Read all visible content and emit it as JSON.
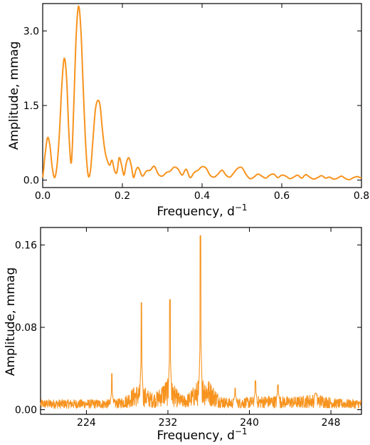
{
  "colors": {
    "series": "#f7931e"
  },
  "chart_data": [
    {
      "type": "line",
      "xlabel": "Frequency, d",
      "xlabel_superscript": "−1",
      "ylabel": "Amplitude, mmag",
      "xlim": [
        0,
        0.8
      ],
      "ylim": [
        -0.15,
        3.55
      ],
      "xticks": [
        0,
        0.2,
        0.4,
        0.6,
        0.8
      ],
      "xtick_labels": [
        "0.0",
        "0.2",
        "0.4",
        "0.6",
        "0.8"
      ],
      "yticks": [
        0,
        1.5,
        3.0
      ],
      "ytick_labels": [
        "0.0",
        "1.5",
        "3.0"
      ],
      "grid": false,
      "series": [
        {
          "x": [
            0.0,
            0.005,
            0.012,
            0.018,
            0.024,
            0.03,
            0.036,
            0.042,
            0.048,
            0.054,
            0.06,
            0.066,
            0.072,
            0.078,
            0.084,
            0.09,
            0.096,
            0.102,
            0.108,
            0.114,
            0.12,
            0.126,
            0.132,
            0.138,
            0.144,
            0.15,
            0.156,
            0.162,
            0.168,
            0.174,
            0.18,
            0.186,
            0.192,
            0.198,
            0.204,
            0.21,
            0.216,
            0.222,
            0.228,
            0.234,
            0.24,
            0.25,
            0.26,
            0.27,
            0.28,
            0.29,
            0.3,
            0.31,
            0.32,
            0.33,
            0.34,
            0.35,
            0.36,
            0.37,
            0.38,
            0.39,
            0.4,
            0.41,
            0.42,
            0.43,
            0.44,
            0.45,
            0.46,
            0.47,
            0.48,
            0.49,
            0.5,
            0.51,
            0.52,
            0.53,
            0.54,
            0.55,
            0.56,
            0.57,
            0.58,
            0.59,
            0.6,
            0.61,
            0.62,
            0.63,
            0.64,
            0.65,
            0.66,
            0.67,
            0.68,
            0.69,
            0.7,
            0.71,
            0.72,
            0.73,
            0.74,
            0.75,
            0.76,
            0.77,
            0.78,
            0.79,
            0.8
          ],
          "y": [
            0.05,
            0.45,
            0.85,
            0.7,
            0.25,
            0.05,
            0.3,
            0.95,
            1.9,
            2.45,
            2.05,
            0.9,
            0.35,
            1.5,
            2.9,
            3.5,
            3.0,
            1.8,
            0.7,
            0.1,
            0.2,
            0.8,
            1.4,
            1.6,
            1.5,
            1.0,
            0.6,
            0.4,
            0.3,
            0.4,
            0.2,
            0.15,
            0.45,
            0.3,
            0.1,
            0.35,
            0.45,
            0.3,
            0.05,
            0.2,
            0.25,
            0.08,
            0.18,
            0.2,
            0.28,
            0.12,
            0.08,
            0.15,
            0.18,
            0.26,
            0.22,
            0.1,
            0.22,
            0.05,
            0.15,
            0.2,
            0.27,
            0.24,
            0.1,
            0.06,
            0.12,
            0.2,
            0.1,
            0.06,
            0.15,
            0.24,
            0.25,
            0.12,
            0.03,
            0.06,
            0.12,
            0.08,
            0.04,
            0.1,
            0.12,
            0.05,
            0.1,
            0.08,
            0.03,
            0.06,
            0.1,
            0.04,
            0.11,
            0.06,
            0.02,
            0.05,
            0.09,
            0.04,
            0.06,
            0.02,
            0.04,
            0.08,
            0.03,
            0.01,
            0.05,
            0.07,
            0.04
          ]
        }
      ]
    },
    {
      "type": "line",
      "xlabel": "Frequency, d",
      "xlabel_superscript": "−1",
      "ylabel": "Amplitude, mmag",
      "xlim": [
        219.5,
        251.0
      ],
      "ylim": [
        -0.0045,
        0.177
      ],
      "xticks": [
        224,
        232,
        240,
        248
      ],
      "xtick_labels": [
        "224",
        "232",
        "240",
        "248"
      ],
      "yticks": [
        0.0,
        0.08,
        0.16
      ],
      "ytick_labels": [
        "0.00",
        "0.08",
        "0.16"
      ],
      "grid": false,
      "series": [
        {
          "baseline_noise": 0.008,
          "envelopes": [
            {
              "center": 229.2,
              "width": 1.2,
              "amplitude": 0.012
            },
            {
              "center": 232.0,
              "width": 1.0,
              "amplitude": 0.016
            },
            {
              "center": 235.5,
              "width": 1.3,
              "amplitude": 0.018
            },
            {
              "center": 242.0,
              "width": 3.0,
              "amplitude": 0.003
            },
            {
              "center": 246.5,
              "width": 1.5,
              "amplitude": 0.004
            }
          ],
          "peaks": [
            {
              "x": 226.5,
              "y": 0.035
            },
            {
              "x": 229.4,
              "y": 0.104
            },
            {
              "x": 232.2,
              "y": 0.107
            },
            {
              "x": 235.2,
              "y": 0.169
            },
            {
              "x": 238.6,
              "y": 0.021
            },
            {
              "x": 240.6,
              "y": 0.028
            },
            {
              "x": 242.8,
              "y": 0.024
            },
            {
              "x": 246.5,
              "y": 0.016
            }
          ]
        }
      ]
    }
  ]
}
